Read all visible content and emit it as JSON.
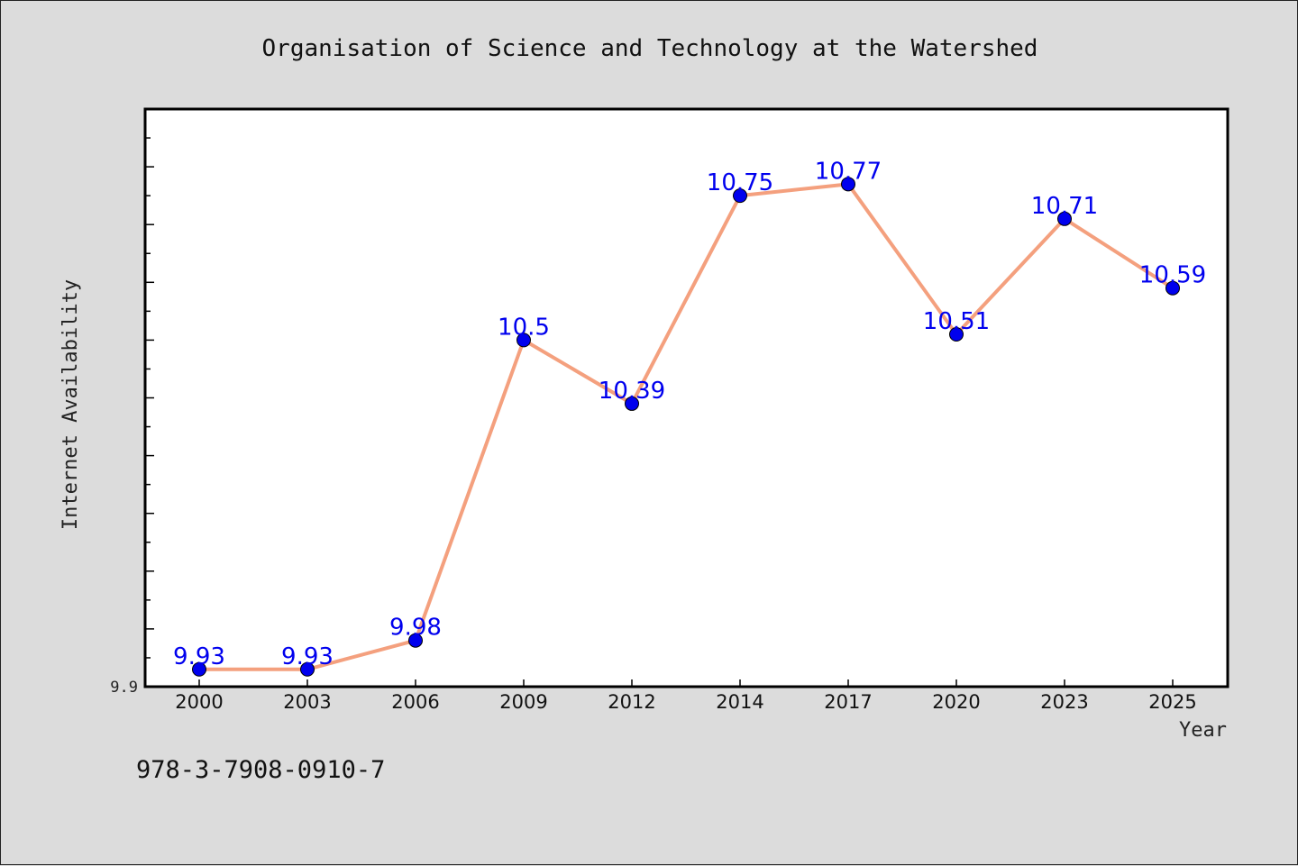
{
  "chart_data": {
    "type": "line",
    "title": "Organisation of Science and Technology at the Watershed",
    "xlabel": "Year",
    "ylabel": "Internet Availability",
    "categories": [
      "2000",
      "2003",
      "2006",
      "2009",
      "2012",
      "2014",
      "2017",
      "2020",
      "2023",
      "2025"
    ],
    "series": [
      {
        "values": [
          9.93,
          9.93,
          9.98,
          10.5,
          10.39,
          10.75,
          10.77,
          10.51,
          10.71,
          10.59
        ],
        "labels": [
          "9.93",
          "9.93",
          "9.98",
          "10.5",
          "10.39",
          "10.75",
          "10.77",
          "10.51",
          "10.71",
          "10.59"
        ],
        "line_color": "#f4a07e",
        "marker_color": "#0000ee",
        "label_color": "#0000ee"
      }
    ],
    "ylim": [
      9.9,
      10.9
    ],
    "yticks": [
      "9.9"
    ],
    "grid": false,
    "legend": "none"
  },
  "footer": {
    "isbn": "978-3-7908-0910-7"
  }
}
